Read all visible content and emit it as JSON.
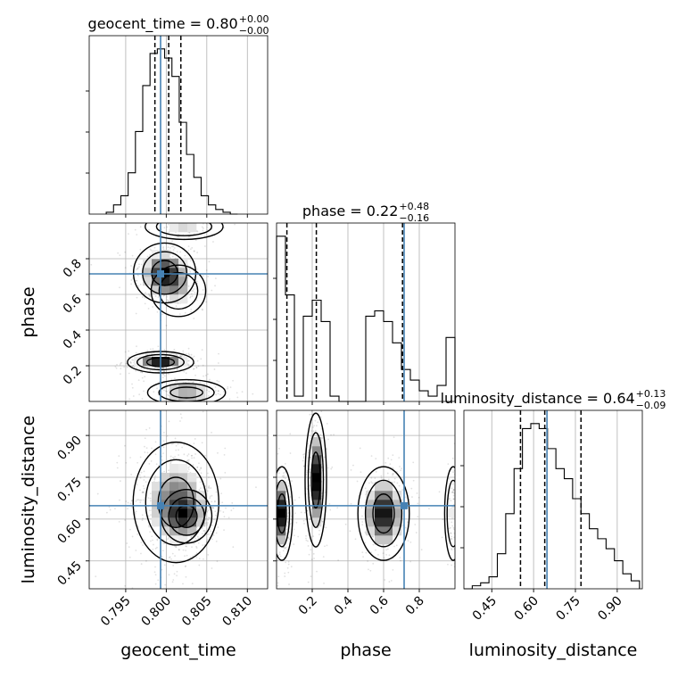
{
  "chart_data": {
    "type": "corner",
    "parameters": [
      "geocent_time",
      "phase",
      "luminosity_distance"
    ],
    "axis_labels": {
      "geocent_time": "geocent_time",
      "phase": "phase",
      "luminosity_distance": "luminosity_distance"
    },
    "ranges": {
      "geocent_time": [
        0.7905,
        0.8125
      ],
      "phase": [
        0.0,
        1.0
      ],
      "luminosity_distance": [
        0.35,
        0.99
      ]
    },
    "ticks": {
      "geocent_time": [
        0.795,
        0.8,
        0.805,
        0.81
      ],
      "phase": [
        0.2,
        0.4,
        0.6,
        0.8
      ],
      "luminosity_distance": [
        0.45,
        0.6,
        0.75,
        0.9
      ]
    },
    "tick_labels": {
      "geocent_time": [
        "0.795",
        "0.800",
        "0.805",
        "0.810"
      ],
      "phase": [
        "0.2",
        "0.4",
        "0.6",
        "0.8"
      ],
      "luminosity_distance": [
        "0.45",
        "0.60",
        "0.75",
        "0.90"
      ]
    },
    "truth_color": "#4682b4",
    "truths": {
      "geocent_time": 0.7993,
      "phase": 0.715,
      "luminosity_distance": 0.648
    },
    "titles": [
      {
        "param": "geocent_time",
        "prefix": "geocent_time = 0.80",
        "plus": "+0.00",
        "minus": "−0.00"
      },
      {
        "param": "phase",
        "prefix": "phase = 0.22",
        "plus": "+0.48",
        "minus": "−0.16"
      },
      {
        "param": "luminosity_distance",
        "prefix": "luminosity_distance = 0.64",
        "plus": "+0.13",
        "minus": "−0.09"
      }
    ],
    "quantiles": {
      "geocent_time": [
        0.7986,
        0.8003,
        0.8018
      ],
      "phase": [
        0.058,
        0.223,
        0.706
      ],
      "luminosity_distance": [
        0.553,
        0.64,
        0.77
      ]
    },
    "histograms": {
      "geocent_time": {
        "edges": [
          0.7926,
          0.7935,
          0.7944,
          0.7953,
          0.7962,
          0.7971,
          0.798,
          0.7989,
          0.7998,
          0.8007,
          0.8016,
          0.8025,
          0.8034,
          0.8043,
          0.8052,
          0.8061,
          0.807,
          0.8079,
          0.8088
        ],
        "counts": [
          2,
          10,
          20,
          45,
          90,
          140,
          175,
          180,
          170,
          150,
          100,
          65,
          40,
          20,
          10,
          5,
          2,
          0
        ]
      },
      "phase": {
        "edges": [
          0.0,
          0.05,
          0.1,
          0.15,
          0.2,
          0.25,
          0.3,
          0.35,
          0.4,
          0.45,
          0.5,
          0.55,
          0.6,
          0.65,
          0.7,
          0.75,
          0.8,
          0.85,
          0.9,
          0.95,
          1.0
        ],
        "counts": [
          155,
          100,
          5,
          80,
          95,
          75,
          5,
          0,
          0,
          0,
          80,
          85,
          75,
          55,
          30,
          20,
          10,
          5,
          15,
          60
        ]
      },
      "luminosity_distance": {
        "edges": [
          0.35,
          0.38,
          0.41,
          0.44,
          0.47,
          0.5,
          0.53,
          0.56,
          0.59,
          0.62,
          0.65,
          0.68,
          0.71,
          0.74,
          0.77,
          0.8,
          0.83,
          0.86,
          0.89,
          0.92,
          0.95,
          0.98
        ],
        "counts": [
          0,
          3,
          6,
          12,
          35,
          75,
          120,
          160,
          165,
          160,
          140,
          120,
          110,
          90,
          75,
          60,
          50,
          40,
          28,
          15,
          8
        ]
      }
    },
    "panels_2d": [
      {
        "x": "geocent_time",
        "y": "phase"
      },
      {
        "x": "geocent_time",
        "y": "luminosity_distance"
      },
      {
        "x": "phase",
        "y": "luminosity_distance"
      }
    ]
  }
}
